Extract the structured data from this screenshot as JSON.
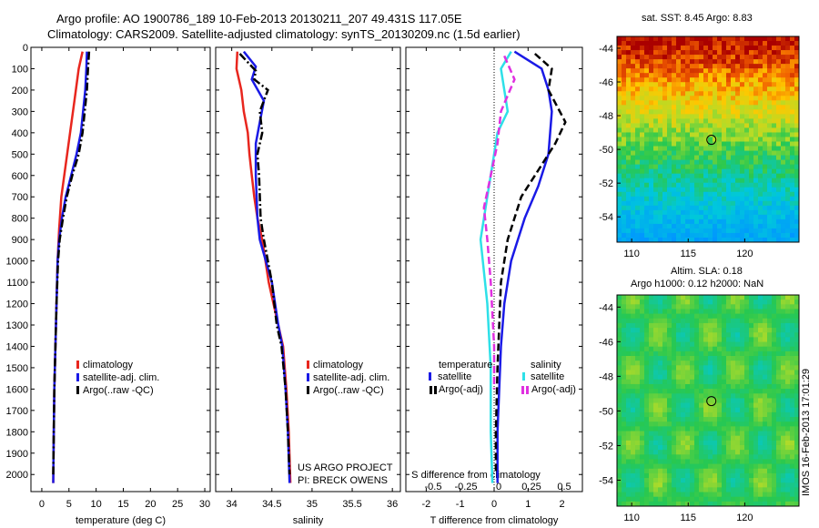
{
  "header": {
    "line1": "Argo profile: AO 1900786_189 10-Feb-2013 20130211_207 49.431S 117.05E",
    "line2": "Climatology: CARS2009. Satellite-adjusted climatology: synTS_20130209.nc (1.5d earlier)"
  },
  "colors": {
    "climatology": "#e8261e",
    "satellite": "#1a1ae6",
    "argo": "#000000",
    "sat_salinity": "#2ee0e8",
    "argo_salinity_adj": "#e030e0"
  },
  "credits": {
    "project": "US ARGO PROJECT",
    "pi": "PI: BRECK OWENS"
  },
  "stamp": "IMOS 16-Feb-2013 17:01:29",
  "chart_data": [
    {
      "type": "line",
      "name": "temperature-panel",
      "xlabel": "temperature (deg C)",
      "xlim": [
        -2,
        31
      ],
      "ylim": [
        2080,
        0
      ],
      "xticks": [
        0,
        5,
        10,
        15,
        20,
        25,
        30
      ],
      "yticks": [
        0,
        100,
        200,
        300,
        400,
        500,
        600,
        700,
        800,
        900,
        1000,
        1100,
        1200,
        1300,
        1400,
        1500,
        1600,
        1700,
        1800,
        1900,
        2000
      ],
      "legend": [
        "climatology",
        "satellite-adj. clim.",
        "Argo(..raw -QC)"
      ],
      "series": [
        {
          "name": "climatology",
          "color": "#e8261e",
          "style": "solid",
          "points": [
            [
              7.5,
              20
            ],
            [
              6.8,
              100
            ],
            [
              6.0,
              250
            ],
            [
              5.2,
              400
            ],
            [
              4.4,
              550
            ],
            [
              3.6,
              700
            ],
            [
              3.2,
              850
            ],
            [
              2.9,
              1000
            ],
            [
              2.7,
              1200
            ],
            [
              2.5,
              1400
            ],
            [
              2.3,
              1600
            ],
            [
              2.2,
              1800
            ],
            [
              2.1,
              2040
            ]
          ]
        },
        {
          "name": "satellite-adj. clim.",
          "color": "#1a1ae6",
          "style": "solid",
          "points": [
            [
              8.3,
              20
            ],
            [
              8.2,
              100
            ],
            [
              8.0,
              200
            ],
            [
              7.6,
              300
            ],
            [
              7.2,
              400
            ],
            [
              6.4,
              500
            ],
            [
              5.4,
              600
            ],
            [
              4.4,
              700
            ],
            [
              3.7,
              800
            ],
            [
              3.2,
              900
            ],
            [
              2.9,
              1000
            ],
            [
              2.7,
              1200
            ],
            [
              2.5,
              1400
            ],
            [
              2.3,
              1600
            ],
            [
              2.2,
              1800
            ],
            [
              2.1,
              2040
            ]
          ]
        },
        {
          "name": "Argo(..raw -QC)",
          "color": "#000000",
          "style": "dash-dot",
          "points": [
            [
              8.7,
              20
            ],
            [
              8.5,
              100
            ],
            [
              8.3,
              200
            ],
            [
              7.9,
              300
            ],
            [
              7.5,
              400
            ],
            [
              6.8,
              500
            ],
            [
              5.6,
              600
            ],
            [
              4.6,
              700
            ],
            [
              3.9,
              800
            ],
            [
              3.3,
              900
            ],
            [
              3.0,
              1000
            ],
            [
              2.7,
              1200
            ],
            [
              2.5,
              1400
            ],
            [
              2.3,
              1600
            ],
            [
              2.2,
              1800
            ],
            [
              2.1,
              2000
            ]
          ]
        }
      ]
    },
    {
      "type": "line",
      "name": "salinity-panel",
      "xlabel": "salinity",
      "xlim": [
        33.8,
        36.1
      ],
      "ylim": [
        2080,
        0
      ],
      "xticks": [
        34,
        34.5,
        35,
        35.5,
        36
      ],
      "legend": [
        "climatology",
        "satellite-adj. clim.",
        "Argo(..raw -QC)"
      ],
      "series": [
        {
          "name": "climatology",
          "color": "#e8261e",
          "style": "solid",
          "points": [
            [
              34.07,
              20
            ],
            [
              34.06,
              100
            ],
            [
              34.12,
              200
            ],
            [
              34.15,
              300
            ],
            [
              34.2,
              400
            ],
            [
              34.22,
              500
            ],
            [
              34.25,
              600
            ],
            [
              34.28,
              700
            ],
            [
              34.32,
              800
            ],
            [
              34.38,
              900
            ],
            [
              34.42,
              1000
            ],
            [
              34.46,
              1100
            ],
            [
              34.52,
              1200
            ],
            [
              34.58,
              1300
            ],
            [
              34.64,
              1400
            ],
            [
              34.68,
              1600
            ],
            [
              34.71,
              1800
            ],
            [
              34.73,
              2040
            ]
          ]
        },
        {
          "name": "satellite-adj. clim.",
          "color": "#1a1ae6",
          "style": "solid",
          "points": [
            [
              34.15,
              20
            ],
            [
              34.3,
              90
            ],
            [
              34.25,
              150
            ],
            [
              34.4,
              250
            ],
            [
              34.35,
              350
            ],
            [
              34.3,
              450
            ],
            [
              34.3,
              600
            ],
            [
              34.32,
              800
            ],
            [
              34.35,
              900
            ],
            [
              34.5,
              1100
            ],
            [
              34.58,
              1300
            ],
            [
              34.63,
              1400
            ],
            [
              34.67,
              1600
            ],
            [
              34.7,
              1800
            ],
            [
              34.72,
              2040
            ]
          ]
        },
        {
          "name": "Argo(..raw -QC)",
          "color": "#000000",
          "style": "dash-dot",
          "points": [
            [
              34.1,
              30
            ],
            [
              34.3,
              110
            ],
            [
              34.28,
              150
            ],
            [
              34.45,
              200
            ],
            [
              34.35,
              300
            ],
            [
              34.38,
              400
            ],
            [
              34.32,
              500
            ],
            [
              34.34,
              600
            ],
            [
              34.36,
              800
            ],
            [
              34.4,
              900
            ],
            [
              34.45,
              1000
            ],
            [
              34.5,
              1100
            ],
            [
              34.56,
              1300
            ],
            [
              34.62,
              1400
            ],
            [
              34.67,
              1600
            ],
            [
              34.7,
              1800
            ],
            [
              34.72,
              2000
            ]
          ]
        }
      ]
    },
    {
      "type": "line",
      "name": "difference-panel",
      "xlabel": "T difference from climatology",
      "xlabel_top": "S difference from climatology",
      "xlim": [
        -2.6,
        2.6
      ],
      "ylim": [
        2080,
        0
      ],
      "xticks": [
        -2,
        -1,
        0,
        1,
        2
      ],
      "xticks_top": [
        "-0.5",
        "-0.25",
        "0",
        "0.25",
        "0.5"
      ],
      "legend": {
        "temperature_title": "temperature",
        "salinity_title": "salinity",
        "satellite": "satellite",
        "argo_adj": "Argo(-adj)"
      },
      "series": [
        {
          "name": "T satellite",
          "color": "#1a1ae6",
          "style": "solid",
          "points": [
            [
              0.6,
              20
            ],
            [
              1.4,
              100
            ],
            [
              1.6,
              200
            ],
            [
              1.7,
              300
            ],
            [
              1.6,
              500
            ],
            [
              1.3,
              650
            ],
            [
              0.9,
              800
            ],
            [
              0.5,
              1000
            ],
            [
              0.3,
              1200
            ],
            [
              0.2,
              1400
            ],
            [
              0.15,
              1600
            ],
            [
              0.1,
              1800
            ],
            [
              0.1,
              2040
            ]
          ]
        },
        {
          "name": "T Argo(-adj)",
          "color": "#000000",
          "style": "dashed",
          "points": [
            [
              1.2,
              30
            ],
            [
              1.7,
              100
            ],
            [
              1.6,
              200
            ],
            [
              2.1,
              350
            ],
            [
              1.8,
              450
            ],
            [
              1.2,
              600
            ],
            [
              0.8,
              700
            ],
            [
              0.4,
              900
            ],
            [
              0.2,
              1100
            ],
            [
              0.15,
              1300
            ],
            [
              0.1,
              1500
            ],
            [
              0.05,
              1800
            ],
            [
              0.05,
              2000
            ]
          ]
        },
        {
          "name": "S satellite",
          "color": "#2ee0e8",
          "style": "solid",
          "points": [
            [
              0.5,
              20
            ],
            [
              0.2,
              100
            ],
            [
              0.3,
              200
            ],
            [
              0.4,
              300
            ],
            [
              0.1,
              400
            ],
            [
              0.0,
              500
            ],
            [
              -0.2,
              700
            ],
            [
              -0.4,
              900
            ],
            [
              -0.2,
              1200
            ],
            [
              -0.1,
              1500
            ],
            [
              -0.1,
              1800
            ],
            [
              -0.05,
              2040
            ]
          ]
        },
        {
          "name": "S Argo(-adj)",
          "color": "#e030e0",
          "style": "dashed",
          "points": [
            [
              0.3,
              40
            ],
            [
              0.6,
              150
            ],
            [
              0.2,
              300
            ],
            [
              0.1,
              450
            ],
            [
              -0.1,
              600
            ],
            [
              -0.3,
              750
            ],
            [
              -0.2,
              900
            ],
            [
              -0.1,
              1100
            ],
            [
              0.0,
              1400
            ],
            [
              0.0,
              1600
            ]
          ]
        }
      ]
    },
    {
      "type": "heatmap",
      "name": "sst-map",
      "title": "sat. SST: 8.45 Argo: 8.83",
      "xticks": [
        110,
        115,
        120
      ],
      "yticks": [
        -44,
        -46,
        -48,
        -50,
        -52,
        -54
      ],
      "xlim": [
        108.7,
        124.8
      ],
      "ylim": [
        -55.5,
        -43.3
      ],
      "marker": {
        "lon": 117.05,
        "lat": -49.43
      }
    },
    {
      "type": "heatmap",
      "name": "sla-map",
      "title": "Altim. SLA: 0.18",
      "subtitle": "Argo h1000: 0.12 h2000: NaN",
      "xticks": [
        110,
        115,
        120
      ],
      "yticks": [
        -44,
        -46,
        -48,
        -50,
        -52,
        -54
      ],
      "xlim": [
        108.7,
        124.8
      ],
      "ylim": [
        -55.5,
        -43.3
      ],
      "marker": {
        "lon": 117.05,
        "lat": -49.43
      }
    }
  ]
}
